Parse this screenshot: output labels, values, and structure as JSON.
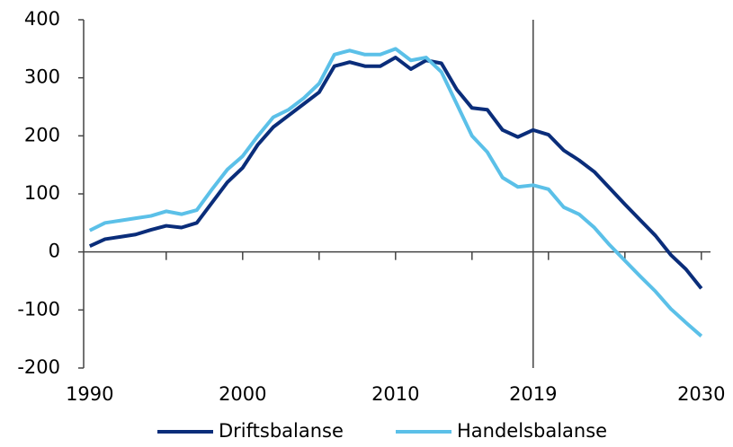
{
  "chart_data": {
    "type": "line",
    "x": [
      1990,
      1991,
      1992,
      1993,
      1994,
      1995,
      1996,
      1997,
      1998,
      1999,
      2000,
      2001,
      2002,
      2003,
      2004,
      2005,
      2006,
      2007,
      2008,
      2009,
      2010,
      2011,
      2012,
      2013,
      2014,
      2015,
      2016,
      2017,
      2018,
      2019,
      2020,
      2021,
      2022,
      2023,
      2024,
      2025,
      2026,
      2027,
      2028,
      2029,
      2030
    ],
    "series": [
      {
        "name": "Driftsbalanse",
        "color": "#0a2d7a",
        "values": [
          10,
          22,
          26,
          30,
          38,
          45,
          42,
          50,
          85,
          120,
          145,
          185,
          215,
          235,
          255,
          275,
          320,
          327,
          320,
          320,
          335,
          315,
          330,
          325,
          280,
          248,
          245,
          210,
          198,
          210,
          202,
          175,
          158,
          138,
          110,
          82,
          55,
          28,
          -5,
          -30,
          -63
        ]
      },
      {
        "name": "Handelsbalanse",
        "color": "#5bc0e8",
        "values": [
          37,
          50,
          54,
          58,
          62,
          70,
          65,
          72,
          108,
          142,
          165,
          200,
          232,
          245,
          265,
          290,
          340,
          347,
          340,
          340,
          350,
          330,
          335,
          310,
          255,
          200,
          172,
          128,
          112,
          115,
          108,
          77,
          65,
          42,
          12,
          -15,
          -42,
          -68,
          -98,
          -122,
          -145
        ]
      }
    ],
    "xlim": [
      1989.6,
      2030.6
    ],
    "xticks": [
      1990,
      2000,
      2010,
      2019,
      2030
    ],
    "xtick_marks": [
      1995,
      2000,
      2005,
      2010,
      2015,
      2020,
      2025,
      2030
    ],
    "vline": 2019,
    "ylim": [
      -200,
      400
    ],
    "yticks": [
      -200,
      -100,
      0,
      100,
      200,
      300,
      400
    ],
    "legend": "bottom"
  }
}
